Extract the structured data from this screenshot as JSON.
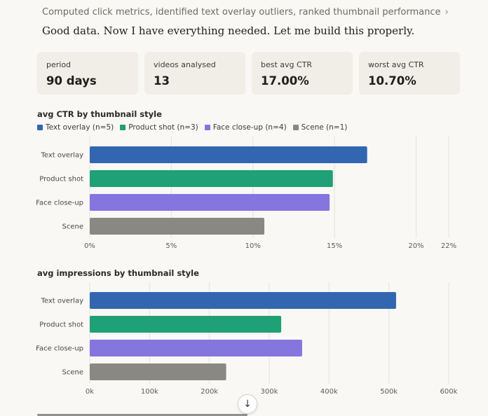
{
  "thinking_summary": "Computed click metrics, identified text overlay outliers, ranked thumbnail performance",
  "assistant_message": "Good data. Now I have everything needed. Let me build this properly.",
  "stat_cards": [
    {
      "label": "period",
      "value": "90 days"
    },
    {
      "label": "videos analysed",
      "value": "13"
    },
    {
      "label": "best avg CTR",
      "value": "17.00%"
    },
    {
      "label": "worst avg CTR",
      "value": "10.70%"
    }
  ],
  "legend": [
    {
      "label": "Text overlay (n=5)",
      "color": "#3366b0"
    },
    {
      "label": "Product shot (n=3)",
      "color": "#1fa077"
    },
    {
      "label": "Face close-up (n=4)",
      "color": "#8575df"
    },
    {
      "label": "Scene (n=1)",
      "color": "#8a8883"
    }
  ],
  "chart_data": [
    {
      "type": "bar",
      "orientation": "horizontal",
      "title": "avg CTR by thumbnail style",
      "categories": [
        "Text overlay",
        "Product shot",
        "Face close-up",
        "Scene"
      ],
      "values": [
        17.0,
        14.9,
        14.7,
        10.7
      ],
      "colors": [
        "#3366b0",
        "#1fa077",
        "#8575df",
        "#8a8883"
      ],
      "xlim": [
        0,
        22
      ],
      "ticks": [
        0,
        5,
        10,
        15,
        20,
        22
      ],
      "tick_labels": [
        "0%",
        "5%",
        "10%",
        "15%",
        "20%",
        "22%"
      ],
      "grid": true
    },
    {
      "type": "bar",
      "orientation": "horizontal",
      "title": "avg impressions by thumbnail style",
      "categories": [
        "Text overlay",
        "Product shot",
        "Face close-up",
        "Scene"
      ],
      "values": [
        512000,
        320000,
        355000,
        228000
      ],
      "colors": [
        "#3366b0",
        "#1fa077",
        "#8575df",
        "#8a8883"
      ],
      "xlim": [
        0,
        600000
      ],
      "ticks": [
        0,
        100000,
        200000,
        300000,
        400000,
        500000,
        600000
      ],
      "tick_labels": [
        "0k",
        "100k",
        "200k",
        "300k",
        "400k",
        "500k",
        "600k"
      ],
      "grid": true
    }
  ],
  "scroll_icon": "arrow-down-icon"
}
